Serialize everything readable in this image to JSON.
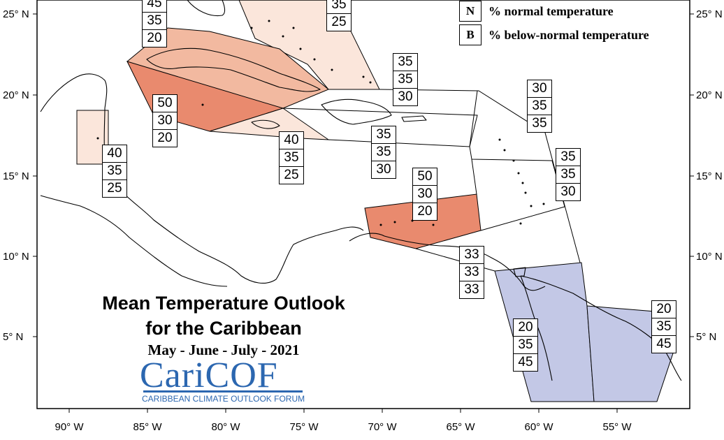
{
  "title": {
    "line1": "Mean Temperature Outlook",
    "line2": "for the Caribbean",
    "period": "May - June - July - 2021"
  },
  "logo": {
    "name": "CariCOF",
    "subtitle": "CARIBBEAN CLIMATE OUTLOOK FORUM"
  },
  "legend": [
    {
      "key": "N",
      "text": "% normal temperature"
    },
    {
      "key": "B",
      "text": "% below-normal temperature"
    }
  ],
  "axes": {
    "longitude_labels": [
      "90° W",
      "85° W",
      "80° W",
      "75° W",
      "70° W",
      "65° W",
      "60° W",
      "55° W"
    ],
    "latitude_labels": [
      "25° N",
      "20° N",
      "15° N",
      "10° N",
      "5° N"
    ]
  },
  "colors": {
    "above_light": "#fbe6db",
    "above_medium": "#f2b9a0",
    "above_strong": "#e98a6e",
    "below": "#c3c8e6",
    "logo_blue": "#2c67b0"
  },
  "probability_boxes": [
    {
      "id": "bahamas-west",
      "values": [
        "45",
        "35",
        "20"
      ]
    },
    {
      "id": "bahamas-east",
      "values": [
        "35",
        "25"
      ]
    },
    {
      "id": "turks-caicos",
      "values": [
        "35",
        "35",
        "30"
      ]
    },
    {
      "id": "leeward-north",
      "values": [
        "30",
        "35",
        "35"
      ]
    },
    {
      "id": "windward",
      "values": [
        "35",
        "35",
        "30"
      ]
    },
    {
      "id": "cayman-cuba-south",
      "values": [
        "50",
        "30",
        "20"
      ]
    },
    {
      "id": "belize",
      "values": [
        "40",
        "35",
        "25"
      ]
    },
    {
      "id": "jamaica",
      "values": [
        "40",
        "35",
        "25"
      ]
    },
    {
      "id": "hispaniola-south",
      "values": [
        "35",
        "35",
        "30"
      ]
    },
    {
      "id": "abc-islands",
      "values": [
        "50",
        "30",
        "20"
      ]
    },
    {
      "id": "trinidad",
      "values": [
        "33",
        "33",
        "33"
      ]
    },
    {
      "id": "guyana",
      "values": [
        "20",
        "35",
        "45"
      ]
    },
    {
      "id": "suriname",
      "values": [
        "20",
        "35",
        "45"
      ]
    }
  ]
}
